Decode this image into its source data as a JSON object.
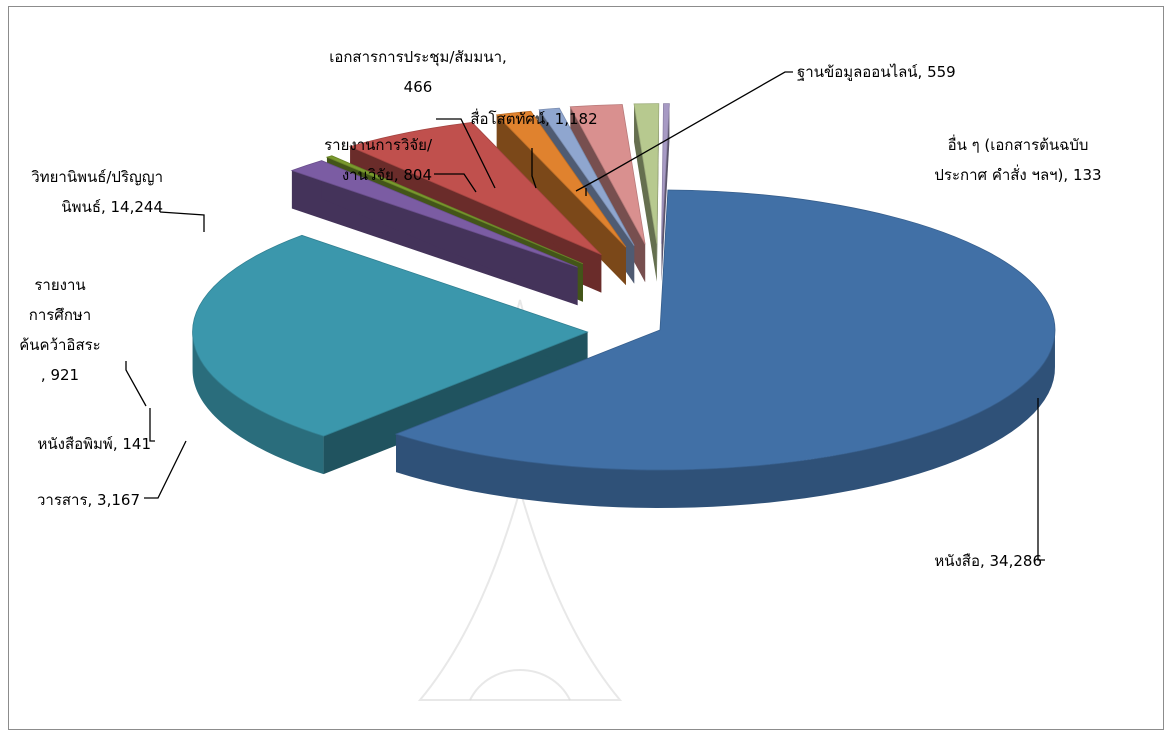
{
  "chart_data": {
    "type": "pie",
    "title": "",
    "slices": [
      {
        "label": "หนังสือ",
        "value": 34286,
        "color": "#4170a6",
        "explode": 0
      },
      {
        "label": "วิทยานิพนธ์/ปริญญานิพนธ์",
        "value": 14244,
        "color": "#3b97ac",
        "explode": 58
      },
      {
        "label": "รายงานการศึกษาค้นคว้าอิสระ",
        "value": 921,
        "color": "#7b5ca3",
        "explode": 96
      },
      {
        "label": "หนังสือพิมพ์",
        "value": 141,
        "color": "#7a9a2e",
        "explode": 96
      },
      {
        "label": "วารสาร",
        "value": 3167,
        "color": "#c0504d",
        "explode": 96
      },
      {
        "label": "รายงานการวิจัย/งานวิจัย",
        "value": 804,
        "color": "#e0822e",
        "explode": 96
      },
      {
        "label": "เอกสารการประชุม/สัมมนา",
        "value": 466,
        "color": "#8fa6cf",
        "explode": 96
      },
      {
        "label": "สื่อโสตทัศน์",
        "value": 1182,
        "color": "#d9908f",
        "explode": 96
      },
      {
        "label": "ฐานข้อมูลออนไลน์",
        "value": 559,
        "color": "#b7c98f",
        "explode": 96
      },
      {
        "label": "อื่น ๆ (เอกสารต้นฉบับประกาศ คำสั่ง ฯลฯ)",
        "value": 133,
        "color": "#a79ac4",
        "explode": 96
      }
    ],
    "data_labels": [
      {
        "lines": [
          "หนังสือ, 34,286"
        ]
      },
      {
        "lines": [
          "วิทยานิพนธ์/ปริญญา",
          "นิพนธ์, 14,244"
        ]
      },
      {
        "lines": [
          "รายงาน",
          "การศึกษา",
          "ค้นคว้าอิสระ",
          ", 921"
        ]
      },
      {
        "lines": [
          "หนังสือพิมพ์, 141"
        ]
      },
      {
        "lines": [
          "วารสาร, 3,167"
        ]
      },
      {
        "lines": [
          "รายงานการวิจัย/",
          "งานวิจัย, 804"
        ]
      },
      {
        "lines": [
          "เอกสารการประชุม/สัมมนา,",
          "466"
        ]
      },
      {
        "lines": [
          "สื่อโสตทัศน์, 1,182"
        ]
      },
      {
        "lines": [
          "ฐานข้อมูลออนไลน์, 559"
        ]
      },
      {
        "lines": [
          "อื่น ๆ (เอกสารต้นฉบับ",
          "ประกาศ  คำสั่ง ฯลฯ), 133"
        ]
      }
    ],
    "legend": "none",
    "view": "3d-exploded"
  }
}
